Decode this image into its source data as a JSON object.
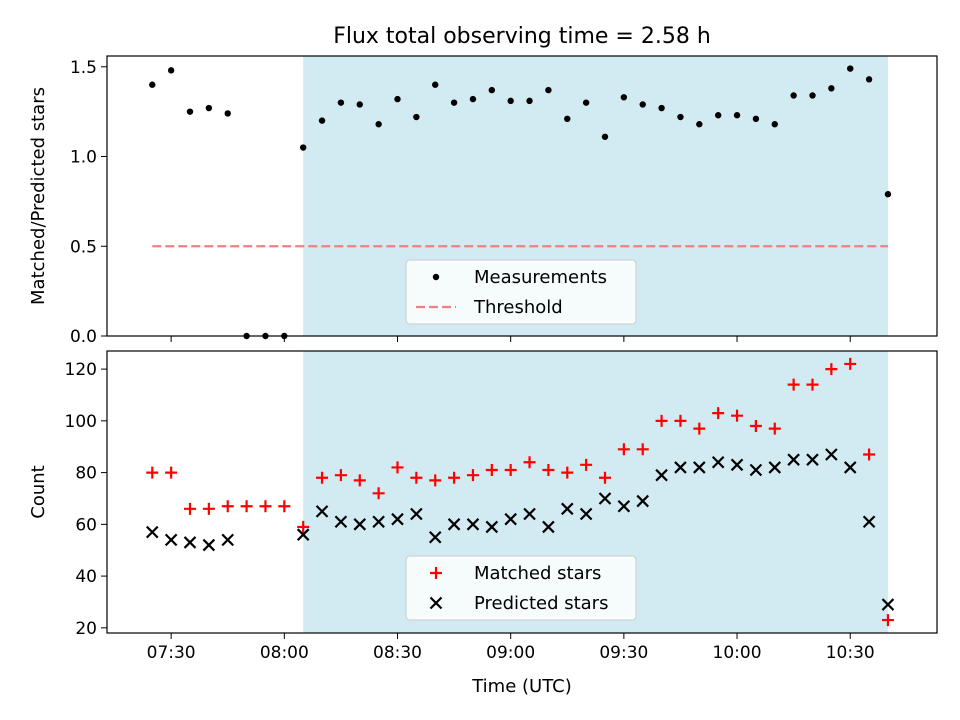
{
  "figure": {
    "title": "Flux total observing time = 2.58 h",
    "xlabel": "Time (UTC)"
  },
  "colors": {
    "shade": "#add8e6",
    "measurement": "#000000",
    "threshold": "#f08080",
    "matched": "#ff0000",
    "predicted": "#000000"
  },
  "chart_data": [
    {
      "type": "scatter",
      "panel": "top",
      "ylabel": "Matched/Predicted stars",
      "ylim": [
        0,
        1.56
      ],
      "yticks": [
        0,
        0.5,
        1.0,
        1.5
      ],
      "ytick_labels": [
        "0.0",
        "0.5",
        "1.0",
        "1.5"
      ],
      "xlim": [
        "07:13",
        "10:53"
      ],
      "shaded_interval": [
        "08:05",
        "10:40"
      ],
      "threshold": {
        "value": 0.5,
        "x_range": [
          "07:25",
          "10:40"
        ]
      },
      "legend": {
        "placement": "bottom-center",
        "entries": [
          "Measurements",
          "Threshold"
        ]
      },
      "series": [
        {
          "name": "Measurements",
          "marker": "dot",
          "x": [
            "07:25",
            "07:30",
            "07:35",
            "07:40",
            "07:45",
            "07:50",
            "07:55",
            "08:00",
            "08:05",
            "08:10",
            "08:15",
            "08:20",
            "08:25",
            "08:30",
            "08:35",
            "08:40",
            "08:45",
            "08:50",
            "08:55",
            "09:00",
            "09:05",
            "09:10",
            "09:15",
            "09:20",
            "09:25",
            "09:30",
            "09:35",
            "09:40",
            "09:45",
            "09:50",
            "09:55",
            "10:00",
            "10:05",
            "10:10",
            "10:15",
            "10:20",
            "10:25",
            "10:30",
            "10:35",
            "10:40"
          ],
          "y": [
            1.4,
            1.48,
            1.25,
            1.27,
            1.24,
            0.0,
            0.0,
            0.0,
            1.05,
            1.2,
            1.3,
            1.29,
            1.18,
            1.32,
            1.22,
            1.4,
            1.3,
            1.32,
            1.37,
            1.31,
            1.31,
            1.37,
            1.21,
            1.3,
            1.11,
            1.33,
            1.29,
            1.27,
            1.22,
            1.18,
            1.23,
            1.23,
            1.21,
            1.18,
            1.34,
            1.34,
            1.38,
            1.49,
            1.43,
            0.79
          ]
        }
      ]
    },
    {
      "type": "scatter",
      "panel": "bottom",
      "ylabel": "Count",
      "ylim": [
        18,
        127
      ],
      "yticks": [
        20,
        40,
        60,
        80,
        100,
        120
      ],
      "ytick_labels": [
        "20",
        "40",
        "60",
        "80",
        "100",
        "120"
      ],
      "xlim": [
        "07:13",
        "10:53"
      ],
      "shaded_interval": [
        "08:05",
        "10:40"
      ],
      "xticks": [
        "07:30",
        "08:00",
        "08:30",
        "09:00",
        "09:30",
        "10:00",
        "10:30"
      ],
      "legend": {
        "placement": "bottom-center",
        "entries": [
          "Matched stars",
          "Predicted stars"
        ]
      },
      "series": [
        {
          "name": "Matched stars",
          "marker": "plus",
          "x": [
            "07:25",
            "07:30",
            "07:35",
            "07:40",
            "07:45",
            "07:50",
            "07:55",
            "08:00",
            "08:05",
            "08:10",
            "08:15",
            "08:20",
            "08:25",
            "08:30",
            "08:35",
            "08:40",
            "08:45",
            "08:50",
            "08:55",
            "09:00",
            "09:05",
            "09:10",
            "09:15",
            "09:20",
            "09:25",
            "09:30",
            "09:35",
            "09:40",
            "09:45",
            "09:50",
            "09:55",
            "10:00",
            "10:05",
            "10:10",
            "10:15",
            "10:20",
            "10:25",
            "10:30",
            "10:35",
            "10:40"
          ],
          "y": [
            80,
            80,
            66,
            66,
            67,
            67,
            67,
            67,
            59,
            78,
            79,
            77,
            72,
            82,
            78,
            77,
            78,
            79,
            81,
            81,
            84,
            81,
            80,
            83,
            78,
            89,
            89,
            100,
            100,
            97,
            103,
            102,
            98,
            97,
            114,
            114,
            120,
            122,
            87,
            23
          ]
        },
        {
          "name": "Predicted stars",
          "marker": "x",
          "x": [
            "07:25",
            "07:30",
            "07:35",
            "07:40",
            "07:45",
            "08:05",
            "08:10",
            "08:15",
            "08:20",
            "08:25",
            "08:30",
            "08:35",
            "08:40",
            "08:45",
            "08:50",
            "08:55",
            "09:00",
            "09:05",
            "09:10",
            "09:15",
            "09:20",
            "09:25",
            "09:30",
            "09:35",
            "09:40",
            "09:45",
            "09:50",
            "09:55",
            "10:00",
            "10:05",
            "10:10",
            "10:15",
            "10:20",
            "10:25",
            "10:30",
            "10:35",
            "10:40"
          ],
          "y": [
            57,
            54,
            53,
            52,
            54,
            56,
            65,
            61,
            60,
            61,
            62,
            64,
            55,
            60,
            60,
            59,
            62,
            64,
            59,
            66,
            64,
            70,
            67,
            69,
            79,
            82,
            82,
            84,
            83,
            81,
            82,
            85,
            85,
            87,
            82,
            61,
            29
          ]
        }
      ]
    }
  ]
}
